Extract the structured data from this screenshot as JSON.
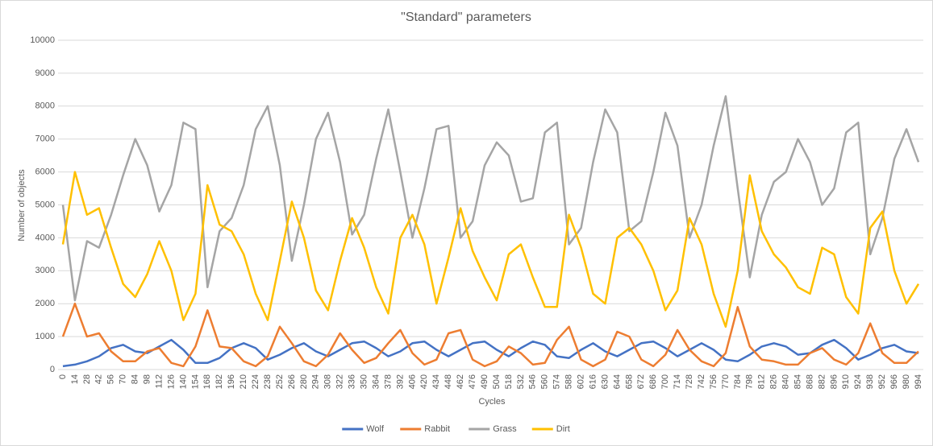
{
  "chart_data": {
    "type": "line",
    "title": "\"Standard\" parameters",
    "x_label": "Cycles",
    "y_label": "Number of objects",
    "categories": [
      0,
      14,
      28,
      42,
      56,
      70,
      84,
      98,
      112,
      126,
      140,
      154,
      168,
      182,
      196,
      210,
      224,
      238,
      252,
      266,
      280,
      294,
      308,
      322,
      336,
      350,
      364,
      378,
      392,
      406,
      420,
      434,
      448,
      462,
      476,
      490,
      504,
      518,
      532,
      546,
      560,
      574,
      588,
      602,
      616,
      630,
      644,
      658,
      672,
      686,
      700,
      714,
      728,
      742,
      756,
      770,
      784,
      798,
      812,
      826,
      840,
      854,
      868,
      882,
      896,
      910,
      924,
      938,
      952,
      966,
      980,
      994
    ],
    "ylim": [
      0,
      10000
    ],
    "yticks": [
      0,
      1000,
      2000,
      3000,
      4000,
      5000,
      6000,
      7000,
      8000,
      9000,
      10000
    ],
    "grid": true,
    "legend": "bottom",
    "series": [
      {
        "name": "Wolf",
        "color": "#4472c4",
        "values": [
          100,
          150,
          250,
          400,
          650,
          750,
          550,
          500,
          700,
          900,
          600,
          200,
          200,
          350,
          650,
          800,
          650,
          300,
          450,
          650,
          800,
          550,
          400,
          600,
          800,
          850,
          650,
          400,
          550,
          800,
          850,
          600,
          400,
          600,
          800,
          850,
          600,
          400,
          650,
          850,
          750,
          400,
          350,
          600,
          800,
          550,
          400,
          600,
          800,
          850,
          650,
          400,
          600,
          800,
          600,
          300,
          250,
          450,
          700,
          800,
          700,
          450,
          500,
          750,
          900,
          650,
          300,
          450,
          650,
          750,
          550,
          500
        ]
      },
      {
        "name": "Rabbit",
        "color": "#ed7d31",
        "values": [
          1000,
          2000,
          1000,
          1100,
          550,
          250,
          250,
          550,
          650,
          200,
          100,
          700,
          1800,
          700,
          650,
          250,
          100,
          400,
          1300,
          800,
          250,
          100,
          450,
          1100,
          600,
          200,
          350,
          800,
          1200,
          500,
          150,
          300,
          1100,
          1200,
          300,
          100,
          250,
          700,
          500,
          150,
          200,
          900,
          1300,
          300,
          100,
          300,
          1150,
          1000,
          300,
          100,
          450,
          1200,
          600,
          250,
          100,
          500,
          1900,
          700,
          300,
          250,
          150,
          150,
          500,
          650,
          300,
          150,
          500,
          1400,
          500,
          200,
          200,
          550
        ]
      },
      {
        "name": "Grass",
        "color": "#a5a5a5",
        "values": [
          5000,
          2100,
          3900,
          3700,
          4700,
          5900,
          7000,
          6200,
          4800,
          5600,
          7500,
          7300,
          2500,
          4200,
          4600,
          5600,
          7300,
          8000,
          6200,
          3300,
          5000,
          7000,
          7800,
          6300,
          4100,
          4700,
          6400,
          7900,
          6000,
          4000,
          5500,
          7300,
          7400,
          4000,
          4500,
          6200,
          6900,
          6500,
          5100,
          5200,
          7200,
          7500,
          3800,
          4300,
          6300,
          7900,
          7200,
          4200,
          4500,
          6000,
          7800,
          6800,
          4000,
          5000,
          6800,
          8300,
          5500,
          2800,
          4700,
          5700,
          6000,
          7000,
          6300,
          5000,
          5500,
          7200,
          7500,
          3500,
          4600,
          6400,
          7300,
          6300
        ]
      },
      {
        "name": "Dirt",
        "color": "#ffc000",
        "values": [
          3800,
          6000,
          4700,
          4900,
          3700,
          2600,
          2200,
          2900,
          3900,
          3000,
          1500,
          2300,
          5600,
          4400,
          4200,
          3500,
          2300,
          1500,
          3300,
          5100,
          4000,
          2400,
          1800,
          3300,
          4600,
          3700,
          2500,
          1700,
          4000,
          4700,
          3800,
          2000,
          3400,
          4900,
          3600,
          2800,
          2100,
          3500,
          3800,
          2800,
          1900,
          1900,
          4700,
          3700,
          2300,
          2000,
          4000,
          4300,
          3800,
          3000,
          1800,
          2400,
          4600,
          3800,
          2300,
          1300,
          3000,
          5900,
          4200,
          3500,
          3100,
          2500,
          2300,
          3700,
          3500,
          2200,
          1700,
          4300,
          4800,
          3000,
          2000,
          2600
        ]
      }
    ]
  }
}
